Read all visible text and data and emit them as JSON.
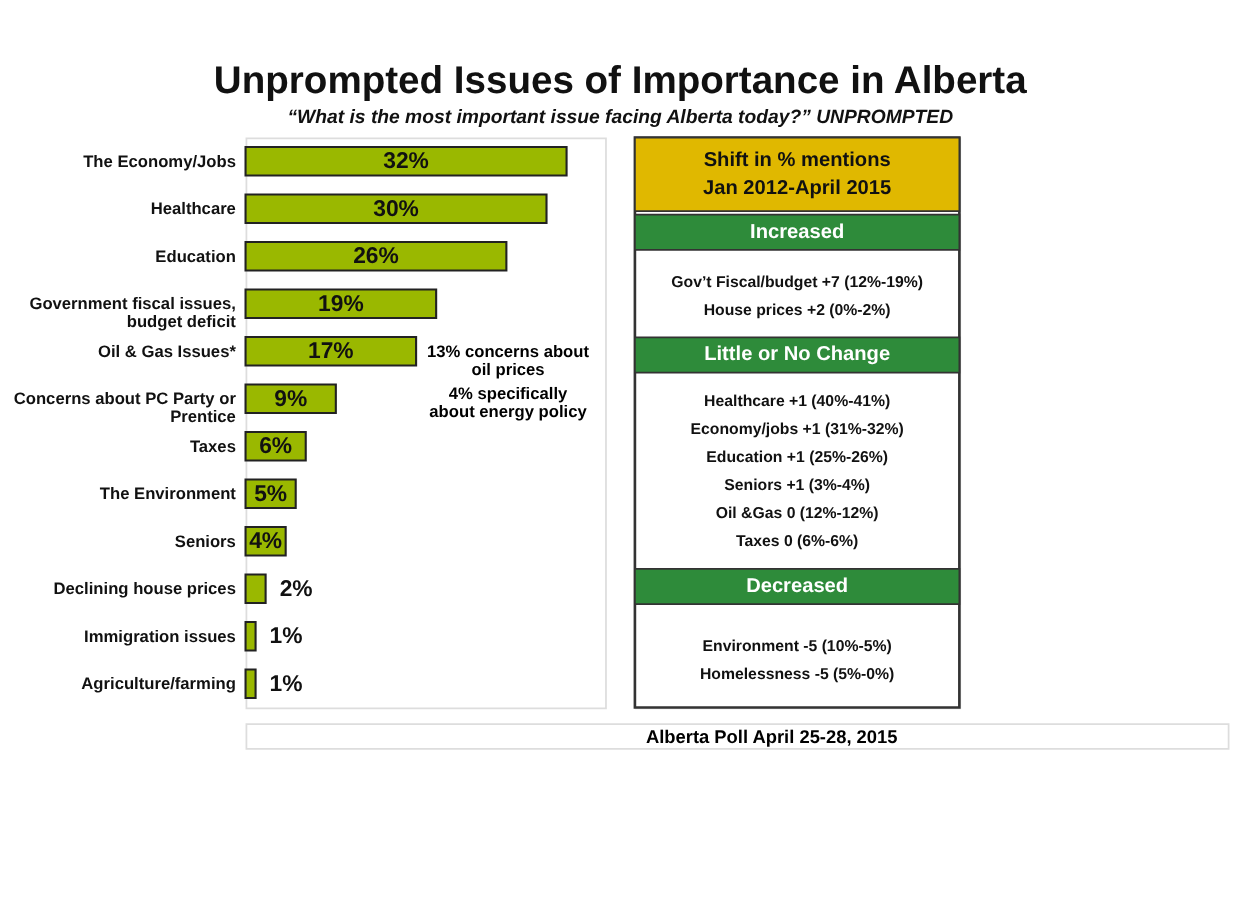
{
  "chart_data": {
    "type": "bar",
    "orientation": "horizontal",
    "title": "Unprompted Issues of Importance in Alberta",
    "subtitle": "“What is the most important issue facing Alberta today?” UNPROMPTED",
    "categories": [
      "The Economy/Jobs",
      "Healthcare",
      "Education",
      "Government fiscal issues,\nbudget deficit",
      "Oil & Gas Issues*",
      "Concerns about PC Party or\nPrentice",
      "Taxes",
      "The Environment",
      "Seniors",
      "Declining house prices",
      "Immigration issues",
      "Agriculture/farming"
    ],
    "values": [
      32,
      30,
      26,
      19,
      17,
      9,
      6,
      5,
      4,
      2,
      1,
      1
    ],
    "value_labels": [
      "32%",
      "30%",
      "26%",
      "19%",
      "17%",
      "9%",
      "6%",
      "5%",
      "4%",
      "2%",
      "1%",
      "1%"
    ],
    "color": "#9ab800",
    "grid": false,
    "annotations": [
      "13% concerns about\noil prices",
      "4% specifically\nabout energy policy",
      "Shift in % mentions",
      "Jan 2012-April 2015",
      "Increased",
      "Gov’t Fiscal/budget +7 (12%-19%)",
      "House prices +2 (0%-2%)",
      "Little or No Change",
      "Healthcare +1 (40%-41%)",
      "Economy/jobs +1 (31%-32%)",
      "Education +1 (25%-26%)",
      "Seniors +1 (3%-4%)",
      "Oil &Gas  0 (12%-12%)",
      "Taxes 0 (6%-6%)",
      "Decreased",
      "Environment -5 (10%-5%)",
      "Homelessness -5 (5%-0%)",
      "Alberta Poll April 25-28, 2015"
    ]
  }
}
